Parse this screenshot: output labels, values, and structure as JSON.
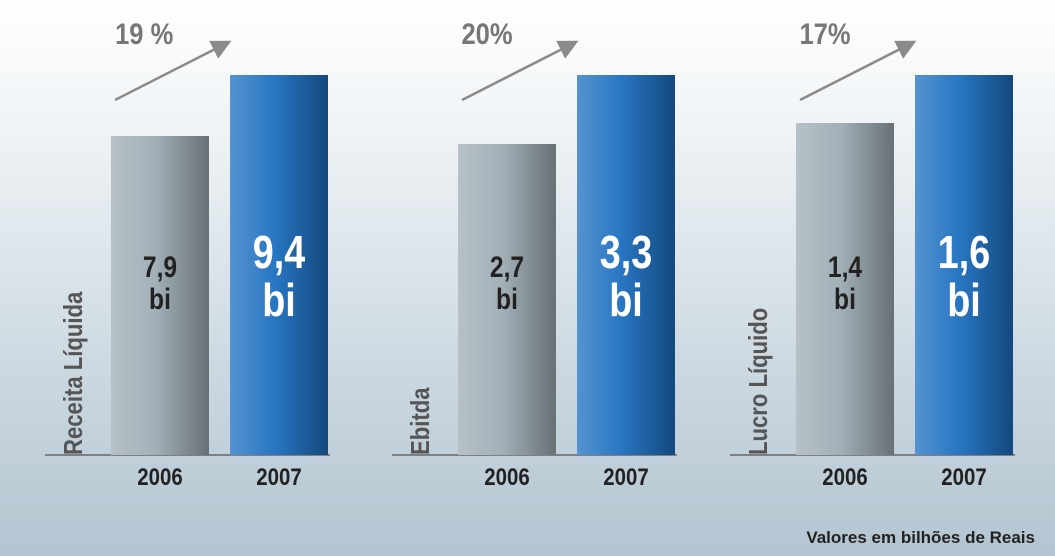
{
  "chart_data": [
    {
      "type": "bar",
      "ylabel": "Receita Líquida",
      "annotation": "19 %",
      "categories": [
        "2006",
        "2007"
      ],
      "values": [
        7.9,
        9.4
      ],
      "value_labels": [
        "7,9 bi",
        "9,4 bi"
      ],
      "colors": [
        "#9eacb4",
        "#1d6fc0"
      ]
    },
    {
      "type": "bar",
      "ylabel": "Ebitda",
      "annotation": "20%",
      "categories": [
        "2006",
        "2007"
      ],
      "values": [
        2.7,
        3.3
      ],
      "value_labels": [
        "2,7 bi",
        "3,3 bi"
      ],
      "colors": [
        "#9eacb4",
        "#1d6fc0"
      ]
    },
    {
      "type": "bar",
      "ylabel": "Lucro Líquido",
      "annotation": "17%",
      "categories": [
        "2006",
        "2007"
      ],
      "values": [
        1.4,
        1.6
      ],
      "value_labels": [
        "1,4 bi",
        "1,6 bi"
      ],
      "colors": [
        "#9eacb4",
        "#1d6fc0"
      ]
    }
  ],
  "footnote": "Valores em bilhões de Reais"
}
